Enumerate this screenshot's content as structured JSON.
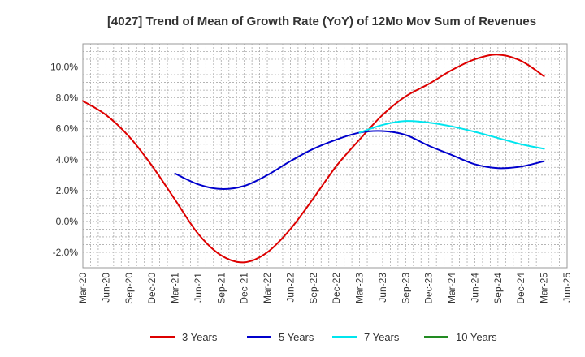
{
  "chart_data": {
    "type": "line",
    "title": "[4027]  Trend of Mean of Growth Rate (YoY) of 12Mo Mov Sum of Revenues",
    "xlabel": "",
    "ylabel": "",
    "categories": [
      "Mar-20",
      "Jun-20",
      "Sep-20",
      "Dec-20",
      "Mar-21",
      "Jun-21",
      "Sep-21",
      "Dec-21",
      "Mar-22",
      "Jun-22",
      "Sep-22",
      "Dec-22",
      "Mar-23",
      "Jun-23",
      "Sep-23",
      "Dec-23",
      "Mar-24",
      "Jun-24",
      "Sep-24",
      "Dec-24",
      "Mar-25",
      "Jun-25"
    ],
    "y_ticks": [
      10.0,
      8.0,
      6.0,
      4.0,
      2.0,
      0.0,
      -2.0
    ],
    "y_tick_labels": [
      "10.0%",
      "8.0%",
      "6.0%",
      "4.0%",
      "2.0%",
      "0.0%",
      "-2.0%"
    ],
    "ylim": [
      -3.0,
      11.5
    ],
    "grid": true,
    "legend_position": "bottom",
    "series": [
      {
        "name": "3 Years",
        "color": "#dd0000",
        "values": [
          7.8,
          6.9,
          5.5,
          3.6,
          1.4,
          -0.8,
          -2.2,
          -2.65,
          -2.0,
          -0.5,
          1.5,
          3.6,
          5.3,
          6.9,
          8.1,
          8.9,
          9.8,
          10.5,
          10.8,
          10.4,
          9.4,
          null
        ]
      },
      {
        "name": "5 Years",
        "color": "#0000cc",
        "values": [
          null,
          null,
          null,
          null,
          3.1,
          2.4,
          2.1,
          2.3,
          3.0,
          3.9,
          4.7,
          5.3,
          5.75,
          5.85,
          5.6,
          4.9,
          4.3,
          3.7,
          3.45,
          3.55,
          3.9,
          null
        ]
      },
      {
        "name": "7 Years",
        "color": "#00e5ee",
        "values": [
          null,
          null,
          null,
          null,
          null,
          null,
          null,
          null,
          null,
          null,
          null,
          null,
          5.75,
          6.25,
          6.5,
          6.4,
          6.15,
          5.8,
          5.4,
          5.0,
          4.7,
          null
        ]
      },
      {
        "name": "10 Years",
        "color": "#228b22",
        "values": [
          null,
          null,
          null,
          null,
          null,
          null,
          null,
          null,
          null,
          null,
          null,
          null,
          null,
          null,
          null,
          null,
          null,
          null,
          null,
          null,
          null,
          null
        ]
      }
    ]
  }
}
